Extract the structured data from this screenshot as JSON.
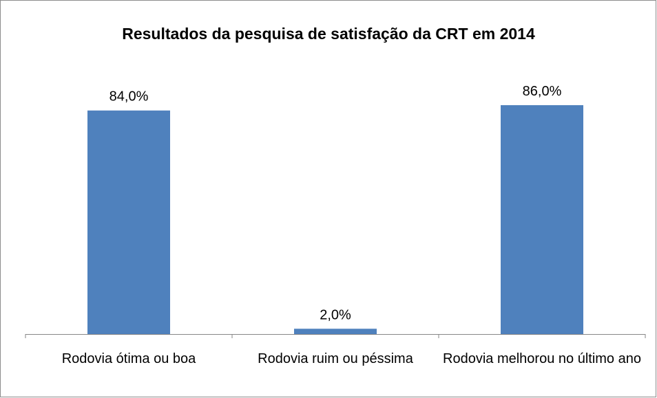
{
  "chart_data": {
    "type": "bar",
    "title": "Resultados da pesquisa de satisfação da CRT em 2014",
    "categories": [
      "Rodovia ótima ou boa",
      "Rodovia ruim ou péssima",
      "Rodovia melhorou no último ano"
    ],
    "values": [
      84,
      2,
      86
    ],
    "value_labels": [
      "84,0%",
      "2,0%",
      "86,0%"
    ],
    "color": "#4f81bd"
  }
}
